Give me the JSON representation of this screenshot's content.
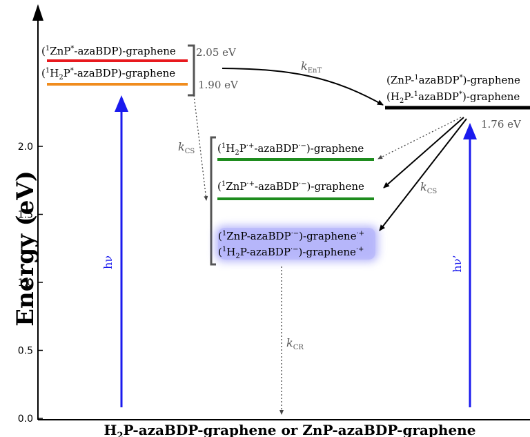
{
  "diagram": {
    "y_axis": {
      "title": "Energy (eV)",
      "ticks": [
        "0.0",
        "0.5",
        "1.0",
        "1.5",
        "2.0"
      ],
      "range": [
        0,
        2.1
      ]
    },
    "x_axis_title": {
      "prefix": "H",
      "sub": "2",
      "rest": "P-azaBDP-graphene or ZnP-azaBDP-graphene"
    },
    "levels": {
      "znp_singlet": {
        "value": 2.05,
        "value_label": "2.05 eV",
        "color": "#e8191e"
      },
      "h2p_singlet": {
        "value": 1.9,
        "value_label": "1.90 eV",
        "color": "#f08c1e"
      },
      "azabdp_singlet": {
        "value": 1.76,
        "value_label": "1.76 eV",
        "color": "#000000"
      },
      "h2p_cs": {
        "color": "#1e8c1e"
      },
      "znp_cs": {
        "color": "#1e8c1e"
      },
      "graphene_cs": {
        "color": "#7b7bf5"
      }
    },
    "labels": {
      "znp_singlet": {
        "a": "(",
        "sup": "1",
        "b": "ZnP",
        "sup2": "*",
        "c": "-azaBDP)-graphene"
      },
      "h2p_singlet": {
        "a": "(",
        "sup": "1",
        "b": "H",
        "sub": "2",
        "c": "P",
        "sup2": "*",
        "d": "-azaBDP)-graphene"
      },
      "znp_azabdp": {
        "a": "(ZnP-",
        "sup": "1",
        "b": "azaBDP",
        "sup2": "*",
        "c": ")-graphene"
      },
      "h2p_azabdp": {
        "a": "(H",
        "sub": "2",
        "b": "P-",
        "sup": "1",
        "c": "azaBDP",
        "sup2": "*",
        "d": ")-graphene"
      },
      "h2p_cs": {
        "a": "(",
        "sup": "1",
        "b": "H",
        "sub": "2",
        "c": "P",
        "sup2": "·+",
        "d": "-azaBDP",
        "sup3": "·−",
        "e": ")-graphene"
      },
      "znp_cs": {
        "a": "(",
        "sup": "1",
        "b": "ZnP",
        "sup2": "·+",
        "c": "-azaBDP",
        "sup3": "·−",
        "d": ")-graphene"
      },
      "znp_graphene_cs": {
        "a": "(",
        "sup": "1",
        "b": "ZnP-azaBDP",
        "sup2": "·−",
        "c": ")-graphene",
        "sup3": "·+"
      },
      "h2p_graphene_cs": {
        "a": "(",
        "sup": "1",
        "b": "H",
        "sub": "2",
        "c": "P-azaBDP",
        "sup2": "·−",
        "d": ")-graphene",
        "sup3": "·+"
      }
    },
    "rates": {
      "k_ent": {
        "k": "k",
        "sub": "EnT"
      },
      "k_cs_left": {
        "k": "k",
        "sub": "CS"
      },
      "k_cs_right": {
        "k": "k",
        "sub": "CS"
      },
      "k_cr": {
        "k": "k",
        "sub": "CR"
      }
    },
    "excitations": {
      "left": "hν",
      "right": "hν’",
      "color": "#1a1aee"
    }
  }
}
